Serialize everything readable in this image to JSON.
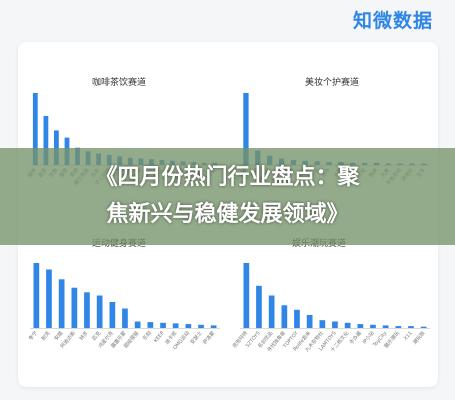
{
  "brand": {
    "logo_text": "知微数据"
  },
  "overlay": {
    "line1": "《四月份热门行业盘点：聚",
    "line2": "焦新兴与稳健发展领域》"
  },
  "colors": {
    "bar": "#2f86e6",
    "bar_light": "#8ec1f2",
    "overlay": "#76946a"
  },
  "chart_data": [
    {
      "type": "bar",
      "title": "咖啡茶饮赛道",
      "categories": [
        "瑞幸",
        "喜茶",
        "奈雪",
        "蜜雪",
        "茶颜",
        "霸王茶姬",
        "古茗",
        "沪上阿姨",
        "书亦",
        "库迪",
        "Manner",
        "Tims",
        "挪瓦",
        "茶百道",
        "益禾堂",
        "CoCo",
        "一点点",
        "7分甜"
      ],
      "values": [
        100,
        68,
        48,
        38,
        24,
        19,
        16,
        14,
        12,
        10,
        9,
        8,
        7,
        6,
        5,
        4,
        3,
        3
      ],
      "xlabel": "",
      "ylabel": ""
    },
    {
      "type": "bar",
      "title": "美妆个护赛道",
      "categories": [
        "珀莱雅",
        "花西子",
        "完美日记",
        "薇诺娜",
        "毛戈平",
        "彩棠",
        "橘朵",
        "逐本",
        "谷雨",
        "HFP",
        "自然堂",
        "韩束",
        "丸美",
        "半亩花田",
        "林清轩",
        "玉泽"
      ],
      "values": [
        100,
        20,
        13,
        9,
        7,
        6,
        5,
        4,
        4,
        3,
        3,
        3,
        2,
        2,
        2,
        2
      ],
      "xlabel": "",
      "ylabel": ""
    },
    {
      "type": "bar",
      "title": "运动健身赛道",
      "categories": [
        "李宁",
        "耐克",
        "安踏",
        "阿迪达斯",
        "特步",
        "匹克",
        "鸿星尔克",
        "露露乐蒙",
        "超级猩猩",
        "乐刻",
        "KEEP",
        "迪卡侬",
        "OMG运动",
        "亚瑟士",
        "萨洛蒙"
      ],
      "values": [
        100,
        90,
        75,
        62,
        55,
        50,
        40,
        30,
        10,
        9,
        8,
        7,
        6,
        5,
        4
      ],
      "xlabel": "",
      "ylabel": ""
    },
    {
      "type": "bar",
      "title": "娱乐潮玩赛道",
      "categories": [
        "泡泡玛特",
        "52TOYS",
        "名创优品",
        "寻找独角兽",
        "TOPTOY",
        "Rolife若来",
        "九木杂物社",
        "LAMTOYS",
        "十二栋文化",
        "手办酱",
        "IP小站",
        "ToyCity",
        "酷乐潮玩",
        "X11",
        "潮玩族"
      ],
      "values": [
        100,
        65,
        50,
        35,
        28,
        20,
        12,
        10,
        8,
        6,
        5,
        4,
        3,
        3,
        2
      ],
      "xlabel": "",
      "ylabel": ""
    }
  ]
}
